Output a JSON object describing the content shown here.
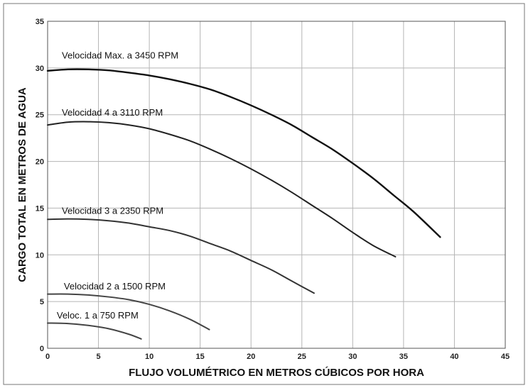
{
  "chart_data": {
    "type": "line",
    "title": "",
    "xlabel": "FLUJO VOLUMÉTRICO EN METROS CÚBICOS POR HORA",
    "ylabel": "CARGO TOTAL EN METROS DE AGUA",
    "xlim": [
      0,
      45
    ],
    "ylim": [
      0,
      35
    ],
    "xticks": [
      "0",
      "5",
      "10",
      "15",
      "20",
      "25",
      "30",
      "35",
      "40",
      "45"
    ],
    "yticks": [
      "0",
      "5",
      "10",
      "15",
      "20",
      "25",
      "30",
      "35"
    ],
    "grid": true,
    "legend": "none",
    "series": [
      {
        "name": "Velocidad Max. a 3450 RPM",
        "color": "#111111",
        "x": [
          0,
          2,
          4,
          6,
          8,
          10,
          12,
          14,
          16,
          18,
          20,
          22,
          24,
          26,
          28,
          30,
          32,
          34,
          36,
          38.6
        ],
        "y": [
          29.7,
          29.85,
          29.85,
          29.75,
          29.5,
          29.2,
          28.8,
          28.3,
          27.7,
          26.9,
          26.0,
          25.0,
          23.9,
          22.6,
          21.3,
          19.8,
          18.2,
          16.4,
          14.6,
          11.9
        ]
      },
      {
        "name": "Velocidad 4 a 3110 RPM",
        "color": "#222222",
        "x": [
          0,
          2,
          4,
          6,
          8,
          10,
          12,
          14,
          16,
          18,
          20,
          22,
          24,
          26,
          28,
          30,
          32,
          34.2
        ],
        "y": [
          23.9,
          24.2,
          24.25,
          24.15,
          23.9,
          23.5,
          22.9,
          22.2,
          21.3,
          20.3,
          19.2,
          18.0,
          16.7,
          15.3,
          13.9,
          12.4,
          11.0,
          9.8
        ]
      },
      {
        "name": "Velocidad 3 a 2350 RPM",
        "color": "#333333",
        "x": [
          0,
          2,
          4,
          6,
          8,
          10,
          12,
          14,
          16,
          18,
          20,
          22,
          24,
          26.2
        ],
        "y": [
          13.8,
          13.85,
          13.8,
          13.65,
          13.4,
          13.0,
          12.6,
          12.0,
          11.2,
          10.4,
          9.4,
          8.4,
          7.2,
          5.9
        ]
      },
      {
        "name": "Velocidad 2 a 1500 RPM",
        "color": "#444444",
        "x": [
          0,
          2,
          4,
          6,
          8,
          10,
          12,
          14,
          15.9
        ],
        "y": [
          5.8,
          5.8,
          5.7,
          5.5,
          5.2,
          4.7,
          4.0,
          3.1,
          2.0
        ]
      },
      {
        "name": "Veloc. 1 a 750 RPM",
        "color": "#444444",
        "x": [
          0,
          2,
          4,
          6,
          8,
          9.2
        ],
        "y": [
          2.7,
          2.65,
          2.45,
          2.1,
          1.5,
          1.0
        ]
      }
    ]
  }
}
